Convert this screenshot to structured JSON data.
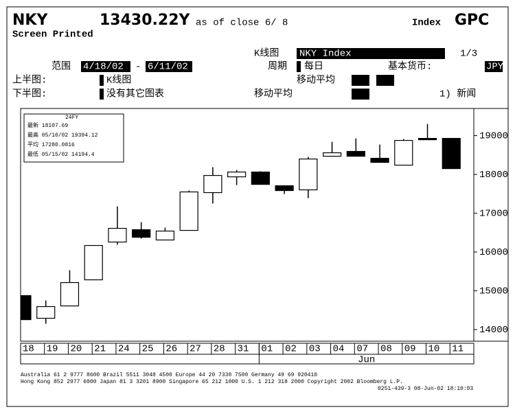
{
  "header": {
    "ticker": "NKY",
    "price": "13430.22Y",
    "as_of": "as of close  6/ 8",
    "type": "Index",
    "function": "GPC",
    "status": "Screen Printed"
  },
  "controls": {
    "chart_label": "K线图",
    "security": "NKY Index",
    "page": "1/3",
    "range_label": "范围",
    "start": "4/18/02",
    "dash": "-",
    "end": "6/11/02",
    "period_label": "周期",
    "period": "每日",
    "currency_label": "基本货币:",
    "currency": "JPY",
    "upper_label": "上半图:",
    "upper_value": "K线图",
    "upper_ma": "移动平均",
    "lower_label": "下半图:",
    "lower_value": "没有其它图表",
    "lower_ma": "移动平均",
    "news": "1) 新闻"
  },
  "chart_data": {
    "type": "candlestick",
    "categories": [
      "18",
      "19",
      "20",
      "21",
      "24",
      "25",
      "26",
      "27",
      "28",
      "31",
      "01",
      "02",
      "03",
      "04",
      "07",
      "08",
      "09",
      "10",
      "11"
    ],
    "month": "Jun",
    "series": [
      {
        "name": "NKY Index",
        "open": [
          14876,
          14292,
          14610,
          15283,
          16257,
          16575,
          16310,
          16557,
          17531,
          17938,
          18062,
          17708,
          17602,
          18469,
          18593,
          18416,
          18239,
          18929,
          18929
        ],
        "high": [
          14876,
          14752,
          15531,
          16168,
          17177,
          16770,
          16628,
          17584,
          18186,
          18115,
          18080,
          17708,
          18451,
          18841,
          18929,
          18770,
          18912,
          19301,
          18929
        ],
        "low": [
          14256,
          14150,
          14610,
          15283,
          16186,
          16345,
          16310,
          16557,
          17248,
          17726,
          17743,
          17496,
          17389,
          18469,
          18469,
          18310,
          18239,
          18894,
          18150
        ],
        "close": [
          14256,
          14593,
          15212,
          16168,
          16610,
          16380,
          16540,
          17549,
          17973,
          18062,
          17743,
          17584,
          18398,
          18558,
          18469,
          18310,
          18876,
          18894,
          18150
        ]
      }
    ],
    "ylim": [
      13700,
      19700
    ],
    "yticks": [
      14000,
      15000,
      16000,
      17000,
      18000,
      19000
    ],
    "stats": {
      "title": "24FY",
      "rows": [
        "最新  18107.69",
        "最高  05/10/02 19394.12",
        "平均  17280.0816",
        "最低  05/15/02 14194.4"
      ]
    }
  },
  "footer": {
    "lines": [
      "Australia 61 2 9777 8600    Brazil 5511 3048 4500    Europe 44 20 7330 7500    Germany 49 69 920410",
      "Hong Kong 852 2977 6000  Japan 81 3 3201 8900  Singapore 65 212 1000  U.S. 1 212 318 2000   Copyright 2002 Bloomberg L.P.",
      "0251-439-3 08-Jun-02 18:10:03"
    ]
  }
}
